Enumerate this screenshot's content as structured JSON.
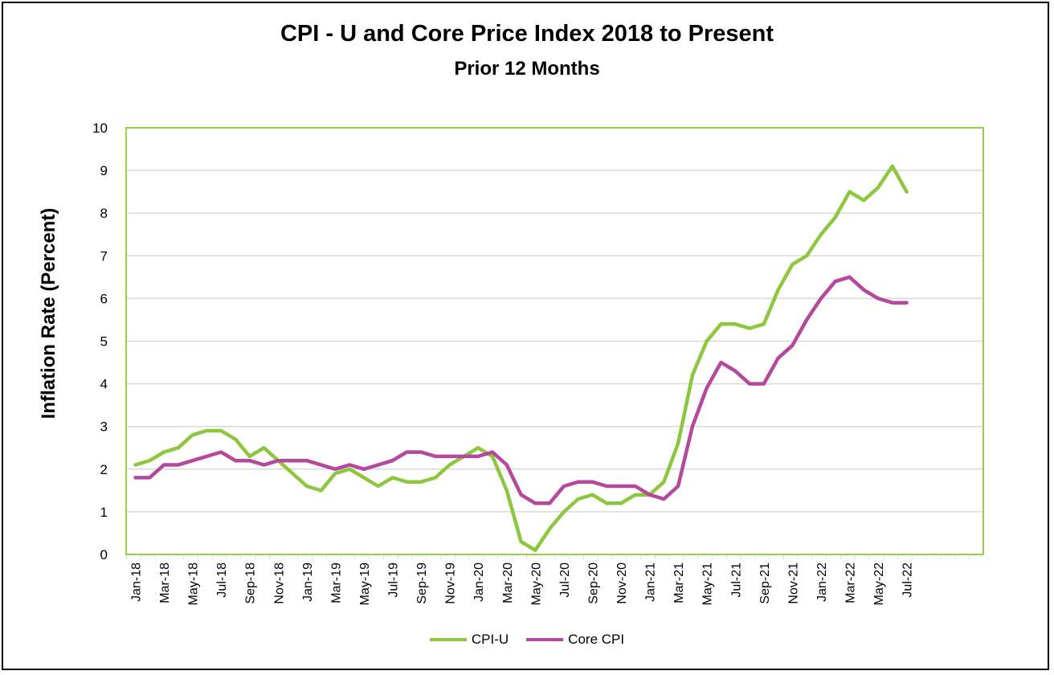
{
  "chart_data": {
    "type": "line",
    "title": "CPI - U and Core Price Index 2018 to Present",
    "subtitle": "Prior 12 Months",
    "xlabel": "",
    "ylabel": "Inflation Rate (Percent)",
    "ylim": [
      0,
      10
    ],
    "yticks": [
      "0",
      "1",
      "2",
      "3",
      "4",
      "5",
      "6",
      "7",
      "8",
      "9",
      "10"
    ],
    "grid": true,
    "legend_position": "bottom",
    "plot_border_color": "#92d050",
    "x_tick_labels": [
      "Jan-18",
      "Mar-18",
      "May-18",
      "Jul-18",
      "Sep-18",
      "Nov-18",
      "Jan-19",
      "Mar-19",
      "May-19",
      "Jul-19",
      "Sep-19",
      "Nov-19",
      "Jan-20",
      "Mar-20",
      "May-20",
      "Jul-20",
      "Sep-20",
      "Nov-20",
      "Jan-21",
      "Mar-21",
      "May-21",
      "Jul-21",
      "Sep-21",
      "Nov-21",
      "Jan-22",
      "Mar-22",
      "May-22",
      "Jul-22"
    ],
    "x": [
      "Jan-18",
      "Feb-18",
      "Mar-18",
      "Apr-18",
      "May-18",
      "Jun-18",
      "Jul-18",
      "Aug-18",
      "Sep-18",
      "Oct-18",
      "Nov-18",
      "Dec-18",
      "Jan-19",
      "Feb-19",
      "Mar-19",
      "Apr-19",
      "May-19",
      "Jun-19",
      "Jul-19",
      "Aug-19",
      "Sep-19",
      "Oct-19",
      "Nov-19",
      "Dec-19",
      "Jan-20",
      "Feb-20",
      "Mar-20",
      "Apr-20",
      "May-20",
      "Jun-20",
      "Jul-20",
      "Aug-20",
      "Sep-20",
      "Oct-20",
      "Nov-20",
      "Dec-20",
      "Jan-21",
      "Feb-21",
      "Mar-21",
      "Apr-21",
      "May-21",
      "Jun-21",
      "Jul-21",
      "Aug-21",
      "Sep-21",
      "Oct-21",
      "Nov-21",
      "Dec-21",
      "Jan-22",
      "Feb-22",
      "Mar-22",
      "Apr-22",
      "May-22",
      "Jun-22",
      "Jul-22"
    ],
    "series": [
      {
        "name": "CPI-U",
        "color": "#8dc63f",
        "values": [
          2.1,
          2.2,
          2.4,
          2.5,
          2.8,
          2.9,
          2.9,
          2.7,
          2.3,
          2.5,
          2.2,
          1.9,
          1.6,
          1.5,
          1.9,
          2.0,
          1.8,
          1.6,
          1.8,
          1.7,
          1.7,
          1.8,
          2.1,
          2.3,
          2.5,
          2.3,
          1.5,
          0.3,
          0.1,
          0.6,
          1.0,
          1.3,
          1.4,
          1.2,
          1.2,
          1.4,
          1.4,
          1.7,
          2.6,
          4.2,
          5.0,
          5.4,
          5.4,
          5.3,
          5.4,
          6.2,
          6.8,
          7.0,
          7.5,
          7.9,
          8.5,
          8.3,
          8.6,
          9.1,
          8.5
        ]
      },
      {
        "name": "Core CPI",
        "color": "#b5479c",
        "values": [
          1.8,
          1.8,
          2.1,
          2.1,
          2.2,
          2.3,
          2.4,
          2.2,
          2.2,
          2.1,
          2.2,
          2.2,
          2.2,
          2.1,
          2.0,
          2.1,
          2.0,
          2.1,
          2.2,
          2.4,
          2.4,
          2.3,
          2.3,
          2.3,
          2.3,
          2.4,
          2.1,
          1.4,
          1.2,
          1.2,
          1.6,
          1.7,
          1.7,
          1.6,
          1.6,
          1.6,
          1.4,
          1.3,
          1.6,
          3.0,
          3.9,
          4.5,
          4.3,
          4.0,
          4.0,
          4.6,
          4.9,
          5.5,
          6.0,
          6.4,
          6.5,
          6.2,
          6.0,
          5.9,
          5.9
        ]
      }
    ]
  }
}
